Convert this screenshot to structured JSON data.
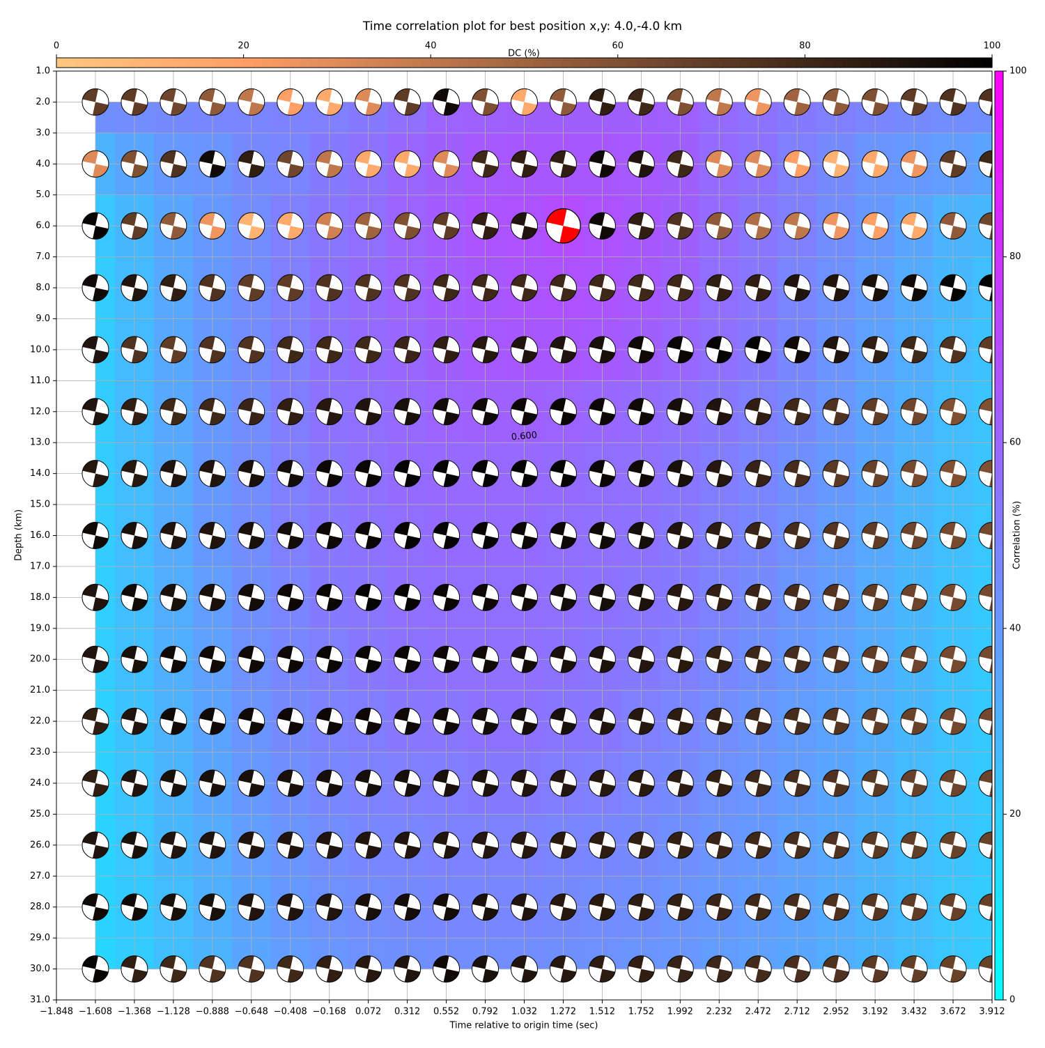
{
  "chart_data": {
    "type": "beachball",
    "title": "Time correlation plot for best position x,y: 4.0,-4.0 km",
    "xlabel": "Time relative to origin time (sec)",
    "ylabel": "Depth (km)",
    "dc_colorbar_label": "DC (%)",
    "corr_colorbar_label": "Correlation (%)",
    "contour_label": "0.600",
    "xlim": [
      -1.848,
      3.912
    ],
    "ylim": [
      31,
      1
    ],
    "xticks": [
      {
        "value": -1.848,
        "label": "−1.848"
      },
      {
        "value": -1.608,
        "label": "−1.608"
      },
      {
        "value": -1.368,
        "label": "−1.368"
      },
      {
        "value": -1.128,
        "label": "−1.128"
      },
      {
        "value": -0.888,
        "label": "−0.888"
      },
      {
        "value": -0.648,
        "label": "−0.648"
      },
      {
        "value": -0.408,
        "label": "−0.408"
      },
      {
        "value": -0.168,
        "label": "−0.168"
      },
      0.072,
      0.312,
      0.552,
      0.792,
      1.032,
      1.272,
      1.512,
      1.752,
      1.992,
      2.232,
      2.472,
      2.712,
      2.952,
      3.192,
      3.432,
      3.672,
      3.912
    ],
    "yticks": [
      {
        "value": 1,
        "label": "1.0"
      },
      {
        "value": 2,
        "label": "2.0"
      },
      {
        "value": 3,
        "label": "3.0"
      },
      {
        "value": 4,
        "label": "4.0"
      },
      {
        "value": 5,
        "label": "5.0"
      },
      {
        "value": 6,
        "label": "6.0"
      },
      {
        "value": 7,
        "label": "7.0"
      },
      {
        "value": 8,
        "label": "8.0"
      },
      {
        "value": 9,
        "label": "9.0"
      },
      {
        "value": 10,
        "label": "10.0"
      },
      {
        "value": 11,
        "label": "11.0"
      },
      {
        "value": 12,
        "label": "12.0"
      },
      {
        "value": 13,
        "label": "13.0"
      },
      {
        "value": 14,
        "label": "14.0"
      },
      {
        "value": 15,
        "label": "15.0"
      },
      {
        "value": 16,
        "label": "16.0"
      },
      {
        "value": 17,
        "label": "17.0"
      },
      {
        "value": 18,
        "label": "18.0"
      },
      {
        "value": 19,
        "label": "19.0"
      },
      {
        "value": 20,
        "label": "20.0"
      },
      {
        "value": 21,
        "label": "21.0"
      },
      {
        "value": 22,
        "label": "22.0"
      },
      {
        "value": 23,
        "label": "23.0"
      },
      {
        "value": 24,
        "label": "24.0"
      },
      {
        "value": 25,
        "label": "25.0"
      },
      {
        "value": 26,
        "label": "26.0"
      },
      {
        "value": 27,
        "label": "27.0"
      },
      {
        "value": 28,
        "label": "28.0"
      },
      {
        "value": 29,
        "label": "29.0"
      },
      {
        "value": 30,
        "label": "30.0"
      },
      {
        "value": 31,
        "label": "31.0"
      }
    ],
    "grid": true,
    "dc_lim": [
      0,
      100
    ],
    "dc_ticks": [
      0,
      20,
      40,
      60,
      80,
      100
    ],
    "corr_lim": [
      0,
      100
    ],
    "corr_ticks": [
      0,
      20,
      40,
      60,
      80,
      100
    ],
    "best": {
      "x": 1.272,
      "depth": 6,
      "color": "#ff0000"
    },
    "x": [
      -1.608,
      -1.368,
      -1.128,
      -0.888,
      -0.648,
      -0.408,
      -0.168,
      0.072,
      0.312,
      0.552,
      0.792,
      1.032,
      1.272,
      1.512,
      1.752,
      1.992,
      2.232,
      2.472,
      2.712,
      2.952,
      3.192,
      3.432,
      3.672,
      3.912
    ],
    "depths": [
      2,
      4,
      6,
      8,
      10,
      12,
      14,
      16,
      18,
      20,
      22,
      24,
      26,
      28,
      30
    ],
    "correlation": [
      [
        44,
        45,
        46,
        47,
        48,
        49,
        50,
        52,
        56,
        61,
        62,
        63,
        63,
        63,
        63,
        62,
        58,
        55,
        52,
        50,
        48,
        46,
        45,
        44
      ],
      [
        30,
        35,
        40,
        42,
        46,
        48,
        52,
        55,
        60,
        63,
        65,
        66,
        66,
        66,
        65,
        63,
        58,
        55,
        50,
        46,
        42,
        40,
        38,
        36
      ],
      [
        22,
        28,
        35,
        40,
        45,
        50,
        54,
        57,
        61,
        64,
        67,
        68,
        70,
        68,
        66,
        63,
        58,
        54,
        50,
        45,
        40,
        35,
        30,
        28
      ],
      [
        20,
        27,
        34,
        40,
        45,
        50,
        55,
        58,
        61,
        64,
        66,
        67,
        68,
        67,
        65,
        62,
        57,
        53,
        48,
        43,
        38,
        33,
        28,
        25
      ],
      [
        20,
        27,
        34,
        40,
        45,
        50,
        55,
        58,
        60,
        63,
        65,
        66,
        66,
        65,
        63,
        60,
        56,
        52,
        47,
        42,
        37,
        32,
        27,
        24
      ],
      [
        20,
        27,
        34,
        40,
        45,
        51,
        55,
        57,
        59,
        61,
        62,
        62,
        61,
        60,
        58,
        56,
        53,
        50,
        46,
        41,
        36,
        31,
        26,
        23
      ],
      [
        20,
        26,
        33,
        40,
        45,
        50,
        54,
        56,
        58,
        59,
        59,
        59,
        58,
        57,
        56,
        54,
        51,
        48,
        44,
        40,
        35,
        30,
        26,
        23
      ],
      [
        20,
        26,
        33,
        40,
        45,
        50,
        53,
        55,
        57,
        58,
        58,
        58,
        57,
        56,
        55,
        53,
        50,
        47,
        43,
        39,
        34,
        29,
        25,
        22
      ],
      [
        19,
        25,
        32,
        38,
        44,
        48,
        52,
        54,
        56,
        57,
        57,
        57,
        56,
        55,
        54,
        52,
        49,
        46,
        42,
        38,
        33,
        28,
        24,
        21
      ],
      [
        19,
        25,
        31,
        37,
        43,
        47,
        50,
        53,
        55,
        56,
        56,
        56,
        55,
        54,
        52,
        50,
        47,
        44,
        40,
        37,
        33,
        28,
        24,
        21
      ],
      [
        18,
        24,
        30,
        36,
        42,
        46,
        49,
        51,
        53,
        54,
        55,
        55,
        54,
        53,
        50,
        48,
        45,
        42,
        39,
        36,
        32,
        28,
        24,
        21
      ],
      [
        18,
        23,
        29,
        35,
        40,
        44,
        47,
        49,
        50,
        51,
        52,
        52,
        51,
        50,
        48,
        46,
        43,
        41,
        38,
        35,
        31,
        27,
        23,
        21
      ],
      [
        17,
        22,
        28,
        33,
        38,
        42,
        45,
        47,
        48,
        49,
        49,
        49,
        48,
        47,
        46,
        44,
        42,
        40,
        37,
        34,
        30,
        26,
        23,
        21
      ],
      [
        17,
        21,
        26,
        31,
        36,
        40,
        43,
        45,
        46,
        47,
        47,
        47,
        46,
        45,
        44,
        42,
        40,
        38,
        36,
        33,
        29,
        26,
        22,
        20
      ],
      [
        16,
        20,
        25,
        30,
        35,
        38,
        41,
        43,
        44,
        45,
        45,
        45,
        44,
        43,
        42,
        41,
        39,
        37,
        35,
        32,
        29,
        25,
        22,
        20
      ]
    ],
    "dc": [
      [
        70,
        70,
        65,
        55,
        40,
        20,
        15,
        30,
        70,
        95,
        60,
        15,
        55,
        85,
        80,
        60,
        40,
        25,
        50,
        55,
        60,
        70,
        75,
        75
      ],
      [
        30,
        60,
        75,
        95,
        85,
        65,
        40,
        15,
        15,
        30,
        80,
        85,
        85,
        95,
        90,
        80,
        30,
        30,
        20,
        10,
        15,
        25,
        70,
        80
      ],
      [
        98,
        70,
        55,
        25,
        10,
        15,
        35,
        50,
        60,
        70,
        85,
        90,
        80,
        95,
        85,
        75,
        55,
        45,
        40,
        25,
        20,
        15,
        55,
        65
      ],
      [
        95,
        90,
        85,
        75,
        70,
        70,
        75,
        75,
        75,
        80,
        80,
        80,
        80,
        80,
        80,
        80,
        85,
        85,
        90,
        90,
        92,
        95,
        98,
        98
      ],
      [
        90,
        75,
        70,
        75,
        75,
        80,
        80,
        80,
        82,
        85,
        88,
        90,
        90,
        92,
        95,
        97,
        98,
        98,
        95,
        90,
        85,
        80,
        75,
        70
      ],
      [
        90,
        85,
        80,
        80,
        82,
        85,
        88,
        90,
        92,
        94,
        95,
        96,
        97,
        96,
        95,
        93,
        90,
        85,
        80,
        75,
        70,
        65,
        60,
        60
      ],
      [
        88,
        88,
        90,
        90,
        92,
        94,
        96,
        97,
        98,
        98,
        98,
        98,
        98,
        97,
        95,
        92,
        88,
        83,
        78,
        72,
        67,
        63,
        60,
        60
      ],
      [
        95,
        92,
        90,
        90,
        92,
        94,
        96,
        97,
        98,
        98,
        98,
        97,
        96,
        95,
        93,
        90,
        86,
        82,
        78,
        74,
        70,
        66,
        63,
        63
      ],
      [
        90,
        95,
        92,
        92,
        94,
        96,
        97,
        98,
        98,
        97,
        96,
        95,
        94,
        93,
        91,
        88,
        85,
        82,
        78,
        74,
        70,
        66,
        63,
        63
      ],
      [
        90,
        92,
        95,
        95,
        95,
        96,
        97,
        97,
        97,
        96,
        95,
        94,
        92,
        91,
        89,
        87,
        84,
        81,
        78,
        74,
        70,
        66,
        63,
        63
      ],
      [
        85,
        90,
        95,
        95,
        95,
        96,
        96,
        96,
        95,
        95,
        94,
        93,
        92,
        90,
        88,
        86,
        84,
        81,
        78,
        74,
        70,
        67,
        64,
        64
      ],
      [
        85,
        90,
        92,
        92,
        92,
        92,
        93,
        93,
        93,
        92,
        91,
        90,
        89,
        88,
        87,
        86,
        84,
        81,
        78,
        75,
        72,
        68,
        66,
        66
      ],
      [
        90,
        92,
        90,
        90,
        90,
        90,
        90,
        90,
        90,
        90,
        89,
        88,
        87,
        86,
        85,
        84,
        82,
        80,
        78,
        75,
        72,
        69,
        67,
        67
      ],
      [
        95,
        95,
        92,
        92,
        90,
        90,
        90,
        92,
        94,
        94,
        92,
        90,
        88,
        87,
        86,
        84,
        82,
        80,
        78,
        76,
        73,
        70,
        68,
        68
      ],
      [
        98,
        85,
        80,
        75,
        75,
        80,
        85,
        88,
        90,
        95,
        92,
        90,
        88,
        86,
        85,
        83,
        81,
        79,
        77,
        75,
        72,
        69,
        67,
        67
      ]
    ]
  }
}
